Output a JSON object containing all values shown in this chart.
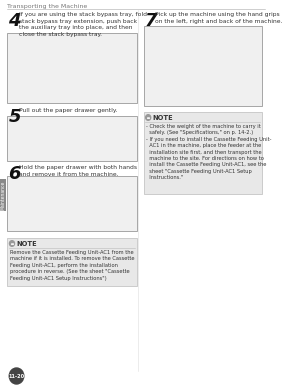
{
  "page_number": "11-20",
  "header_text": "Transporting the Machine",
  "tab_label": "Maintenance",
  "background_color": "#ffffff",
  "steps": [
    {
      "number": "4",
      "text": "If you are using the stack bypass tray, fold\nstack bypass tray extension, push back\nthe auxiliary tray into place, and then\nclose the stack bypass tray.",
      "image_side": "left"
    },
    {
      "number": "5",
      "text": "Pull out the paper drawer gently.",
      "image_side": "left"
    },
    {
      "number": "6",
      "text": "Hold the paper drawer with both hands\nand remove it from the machine.",
      "image_side": "left"
    },
    {
      "number": "7",
      "text": "Pick up the machine using the hand grips\non the left, right and back of the machine.",
      "image_side": "right"
    }
  ],
  "note_left": {
    "title": "NOTE",
    "text": "Remove the Cassette Feeding Unit-AC1 from the\nmachine if it is installed. To remove the Cassette\nFeeding Unit-AC1, perform the installation\nprocedure in reverse. (See the sheet \"Cassette\nFeeding Unit-AC1 Setup Instructions\")"
  },
  "note_right": {
    "title": "NOTE",
    "text": "- Check the weight of the machine to carry it\n  safely. (See \"Specifications,\" on p. 14-2.)\n- If you need to install the Cassette Feeding Unit-\n  AC1 in the machine, place the feeder at the\n  installation site first, and then transport the\n  machine to the site. For directions on how to\n  install the Cassette Feeding Unit-AC1, see the\n  sheet \"Cassette Feeding Unit-AC1 Setup\n  Instructions.\"",
    "bg": "#e8e8e8"
  },
  "divider_color": "#aaaaaa",
  "text_color": "#333333",
  "light_gray": "#cccccc",
  "mid_gray": "#777777",
  "note_bg": "#e8e8e8",
  "step_num_color": "#111111",
  "image_border_color": "#999999",
  "image_bg": "#f0f0f0",
  "tab_color": "#888888"
}
